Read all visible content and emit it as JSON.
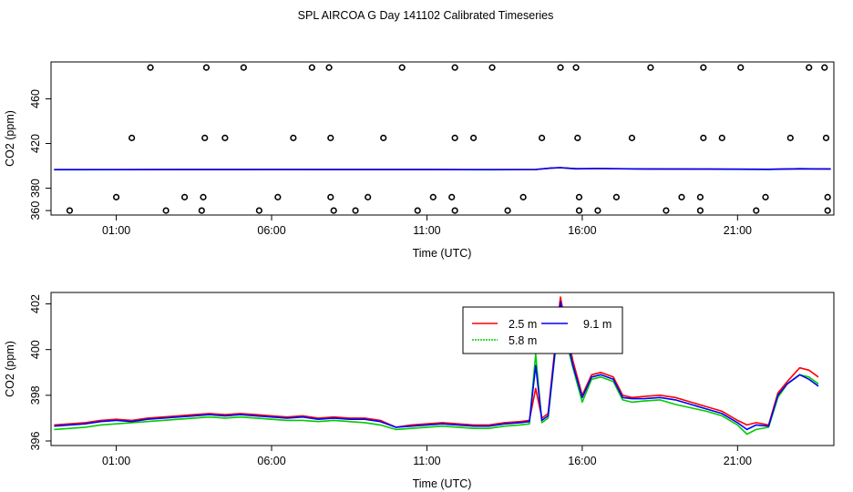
{
  "page": {
    "title": "SPL AIRCOA G  Day 141102  Calibrated Timeseries"
  },
  "chart_data": [
    {
      "type": "scatter",
      "xlabel": "Time (UTC)",
      "ylabel": "CO2 (ppm)",
      "x_ticks": [
        {
          "value": 1,
          "label": "01:00"
        },
        {
          "value": 6,
          "label": "06:00"
        },
        {
          "value": 11,
          "label": "11:00"
        },
        {
          "value": 16,
          "label": "16:00"
        },
        {
          "value": 21,
          "label": "21:00"
        }
      ],
      "y_ticks": [
        {
          "value": 360,
          "label": "360"
        },
        {
          "value": 380,
          "label": "380"
        },
        {
          "value": 420,
          "label": "420"
        },
        {
          "value": 460,
          "label": "460"
        }
      ],
      "xlim": [
        -1.1,
        24.1
      ],
      "ylim": [
        356,
        493
      ],
      "grid": false,
      "point_color": "#000000",
      "points": [
        {
          "x": 1.5,
          "y": 425
        },
        {
          "x": 2.1,
          "y": 488
        },
        {
          "x": 3.9,
          "y": 488
        },
        {
          "x": 3.85,
          "y": 425
        },
        {
          "x": 4.5,
          "y": 425
        },
        {
          "x": 5.1,
          "y": 488
        },
        {
          "x": 6.7,
          "y": 425
        },
        {
          "x": 7.3,
          "y": 488
        },
        {
          "x": 7.85,
          "y": 488
        },
        {
          "x": 7.9,
          "y": 425
        },
        {
          "x": 9.6,
          "y": 425
        },
        {
          "x": 10.2,
          "y": 488
        },
        {
          "x": 11.9,
          "y": 488
        },
        {
          "x": 11.9,
          "y": 425
        },
        {
          "x": 12.5,
          "y": 425
        },
        {
          "x": 13.1,
          "y": 488
        },
        {
          "x": 14.7,
          "y": 425
        },
        {
          "x": 15.3,
          "y": 488
        },
        {
          "x": 15.8,
          "y": 488
        },
        {
          "x": 15.85,
          "y": 425
        },
        {
          "x": 17.6,
          "y": 425
        },
        {
          "x": 18.2,
          "y": 488
        },
        {
          "x": 19.9,
          "y": 488
        },
        {
          "x": 19.9,
          "y": 425
        },
        {
          "x": 20.5,
          "y": 425
        },
        {
          "x": 21.1,
          "y": 488
        },
        {
          "x": 22.7,
          "y": 425
        },
        {
          "x": 23.3,
          "y": 488
        },
        {
          "x": 23.8,
          "y": 488
        },
        {
          "x": 23.85,
          "y": 425
        },
        {
          "x": 1.0,
          "y": 372
        },
        {
          "x": 3.2,
          "y": 372
        },
        {
          "x": 3.8,
          "y": 372
        },
        {
          "x": 6.2,
          "y": 372
        },
        {
          "x": 7.9,
          "y": 372
        },
        {
          "x": 9.1,
          "y": 372
        },
        {
          "x": 11.2,
          "y": 372
        },
        {
          "x": 11.8,
          "y": 372
        },
        {
          "x": 14.1,
          "y": 372
        },
        {
          "x": 15.9,
          "y": 372
        },
        {
          "x": 17.1,
          "y": 372
        },
        {
          "x": 19.2,
          "y": 372
        },
        {
          "x": 19.8,
          "y": 372
        },
        {
          "x": 21.9,
          "y": 372
        },
        {
          "x": 23.9,
          "y": 372
        },
        {
          "x": -0.5,
          "y": 360
        },
        {
          "x": 2.6,
          "y": 360
        },
        {
          "x": 3.75,
          "y": 360
        },
        {
          "x": 5.6,
          "y": 360
        },
        {
          "x": 8.0,
          "y": 360
        },
        {
          "x": 8.7,
          "y": 360
        },
        {
          "x": 10.7,
          "y": 360
        },
        {
          "x": 11.9,
          "y": 360
        },
        {
          "x": 13.6,
          "y": 360
        },
        {
          "x": 15.9,
          "y": 360
        },
        {
          "x": 16.5,
          "y": 360
        },
        {
          "x": 18.7,
          "y": 360
        },
        {
          "x": 19.8,
          "y": 360
        },
        {
          "x": 21.6,
          "y": 360
        },
        {
          "x": 23.9,
          "y": 360
        }
      ],
      "series": [
        {
          "color": "#00cc00",
          "x": [
            -1,
            3,
            6,
            9,
            11,
            13,
            14.5,
            15,
            15.3,
            15.8,
            16.5,
            18,
            20,
            22,
            23,
            24
          ],
          "y": [
            396.5,
            396.6,
            396.7,
            396.6,
            396.6,
            396.5,
            396.7,
            398.0,
            398.3,
            397.3,
            397.5,
            397.2,
            397.0,
            396.8,
            397.3,
            397.2
          ]
        },
        {
          "color": "#ff0000",
          "x": [
            -1,
            3,
            6,
            9,
            11,
            13,
            14.5,
            15,
            15.3,
            15.8,
            16.5,
            18,
            20,
            22,
            23,
            24
          ],
          "y": [
            396.6,
            396.7,
            396.8,
            396.7,
            396.7,
            396.6,
            396.8,
            398.1,
            398.4,
            397.4,
            397.6,
            397.3,
            397.1,
            396.9,
            397.4,
            397.3
          ]
        },
        {
          "color": "#0000ff",
          "x": [
            -1,
            3,
            6,
            9,
            11,
            13,
            14.5,
            15,
            15.3,
            15.8,
            16.5,
            18,
            20,
            22,
            23,
            24
          ],
          "y": [
            396.6,
            396.7,
            396.8,
            396.7,
            396.7,
            396.6,
            396.8,
            398.1,
            398.4,
            397.4,
            397.6,
            397.3,
            397.1,
            396.9,
            397.4,
            397.3
          ]
        }
      ]
    },
    {
      "type": "line",
      "xlabel": "Time (UTC)",
      "ylabel": "CO2 (ppm)",
      "x_ticks": [
        {
          "value": 1,
          "label": "01:00"
        },
        {
          "value": 6,
          "label": "06:00"
        },
        {
          "value": 11,
          "label": "11:00"
        },
        {
          "value": 16,
          "label": "16:00"
        },
        {
          "value": 21,
          "label": "21:00"
        }
      ],
      "y_ticks": [
        {
          "value": 396,
          "label": "396"
        },
        {
          "value": 398,
          "label": "398"
        },
        {
          "value": 400,
          "label": "400"
        },
        {
          "value": 402,
          "label": "402"
        }
      ],
      "xlim": [
        -1.1,
        24.1
      ],
      "ylim": [
        395.8,
        402.5
      ],
      "grid": false,
      "legend": {
        "position": "top-center",
        "columns": 2
      },
      "series": [
        {
          "name": "2.5 m",
          "color": "#ff0000",
          "x": [
            -1,
            -0.5,
            0,
            0.5,
            1,
            1.5,
            2,
            2.5,
            3,
            3.5,
            4,
            4.5,
            5,
            5.5,
            6,
            6.5,
            7,
            7.5,
            8,
            8.5,
            9,
            9.5,
            10,
            10.5,
            11,
            11.5,
            12,
            12.5,
            13,
            13.5,
            14,
            14.3,
            14.5,
            14.7,
            14.9,
            15.1,
            15.3,
            15.5,
            15.7,
            16,
            16.3,
            16.6,
            17,
            17.3,
            17.6,
            18,
            18.5,
            19,
            19.5,
            20,
            20.5,
            21,
            21.3,
            21.6,
            22,
            22.3,
            22.6,
            23,
            23.3,
            23.6
          ],
          "y": [
            396.7,
            396.75,
            396.8,
            396.9,
            396.95,
            396.9,
            397.0,
            397.05,
            397.1,
            397.15,
            397.2,
            397.15,
            397.2,
            397.15,
            397.1,
            397.05,
            397.1,
            397.0,
            397.05,
            397.0,
            397.0,
            396.9,
            396.6,
            396.7,
            396.75,
            396.8,
            396.75,
            396.7,
            396.7,
            396.8,
            396.85,
            396.9,
            398.3,
            397.0,
            397.2,
            399.8,
            402.3,
            400.8,
            399.5,
            398.0,
            398.9,
            399.0,
            398.8,
            398.0,
            397.9,
            397.95,
            398.0,
            397.9,
            397.7,
            397.5,
            397.3,
            396.9,
            396.7,
            396.8,
            396.7,
            398.1,
            398.6,
            399.2,
            399.1,
            398.8
          ]
        },
        {
          "name": "5.8 m",
          "color": "#00cc00",
          "x": [
            -1,
            -0.5,
            0,
            0.5,
            1,
            1.5,
            2,
            2.5,
            3,
            3.5,
            4,
            4.5,
            5,
            5.5,
            6,
            6.5,
            7,
            7.5,
            8,
            8.5,
            9,
            9.5,
            10,
            10.5,
            11,
            11.5,
            12,
            12.5,
            13,
            13.5,
            14,
            14.3,
            14.5,
            14.7,
            14.9,
            15.1,
            15.3,
            15.5,
            15.7,
            16,
            16.3,
            16.6,
            17,
            17.3,
            17.6,
            18,
            18.5,
            19,
            19.5,
            20,
            20.5,
            21,
            21.3,
            21.6,
            22,
            22.3,
            22.6,
            23,
            23.3,
            23.6
          ],
          "y": [
            396.5,
            396.55,
            396.6,
            396.7,
            396.75,
            396.8,
            396.85,
            396.9,
            396.95,
            397.0,
            397.05,
            397.0,
            397.05,
            397.0,
            396.95,
            396.9,
            396.9,
            396.85,
            396.9,
            396.85,
            396.8,
            396.7,
            396.5,
            396.55,
            396.6,
            396.65,
            396.6,
            396.55,
            396.55,
            396.65,
            396.7,
            396.75,
            399.8,
            396.8,
            397.0,
            399.5,
            401.9,
            400.3,
            399.2,
            397.7,
            398.7,
            398.8,
            398.6,
            397.8,
            397.7,
            397.75,
            397.8,
            397.6,
            397.45,
            397.3,
            397.1,
            396.7,
            396.3,
            396.5,
            396.6,
            397.9,
            398.5,
            398.9,
            398.8,
            398.5
          ]
        },
        {
          "name": "9.1 m",
          "color": "#0000ff",
          "x": [
            -1,
            -0.5,
            0,
            0.5,
            1,
            1.5,
            2,
            2.5,
            3,
            3.5,
            4,
            4.5,
            5,
            5.5,
            6,
            6.5,
            7,
            7.5,
            8,
            8.5,
            9,
            9.5,
            10,
            10.5,
            11,
            11.5,
            12,
            12.5,
            13,
            13.5,
            14,
            14.3,
            14.5,
            14.7,
            14.9,
            15.1,
            15.3,
            15.5,
            15.7,
            16,
            16.3,
            16.6,
            17,
            17.3,
            17.6,
            18,
            18.5,
            19,
            19.5,
            20,
            20.5,
            21,
            21.3,
            21.6,
            22,
            22.3,
            22.6,
            23,
            23.3,
            23.6
          ],
          "y": [
            396.65,
            396.7,
            396.75,
            396.85,
            396.9,
            396.85,
            396.95,
            397.0,
            397.05,
            397.1,
            397.15,
            397.1,
            397.15,
            397.1,
            397.05,
            397.0,
            397.05,
            396.95,
            397.0,
            396.95,
            396.95,
            396.85,
            396.6,
            396.65,
            396.7,
            396.75,
            396.7,
            396.65,
            396.65,
            396.75,
            396.8,
            396.85,
            399.3,
            396.9,
            397.1,
            399.6,
            402.1,
            400.5,
            399.3,
            397.9,
            398.8,
            398.9,
            398.7,
            397.9,
            397.85,
            397.85,
            397.9,
            397.8,
            397.6,
            397.4,
            397.2,
            396.8,
            396.5,
            396.7,
            396.65,
            398.0,
            398.5,
            398.9,
            398.7,
            398.4
          ]
        }
      ]
    }
  ]
}
